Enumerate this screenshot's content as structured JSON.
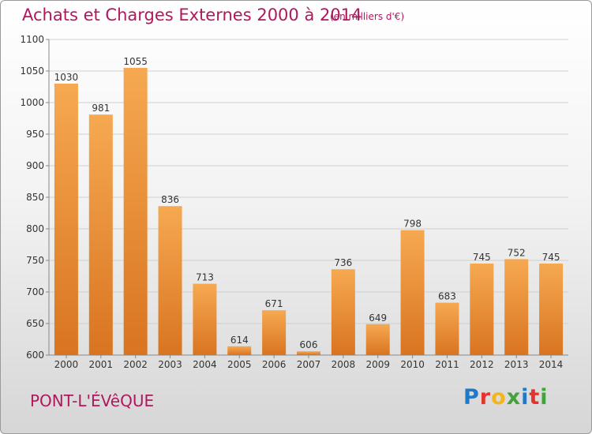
{
  "title": "Achats et Charges Externes 2000 à 2014",
  "unit": "(en milliers d'€)",
  "town": "PONT-L'ÉVêQUE",
  "logo": {
    "letters": [
      "P",
      "r",
      "o",
      "x",
      "i",
      "t",
      "i"
    ],
    "colors": [
      "#1f78c8",
      "#e5322d",
      "#f3b61a",
      "#43a338",
      "#1f78c8",
      "#e5322d",
      "#43a338"
    ]
  },
  "chart_data": {
    "type": "bar",
    "categories": [
      "2000",
      "2001",
      "2002",
      "2003",
      "2004",
      "2005",
      "2006",
      "2007",
      "2008",
      "2009",
      "2010",
      "2011",
      "2012",
      "2013",
      "2014"
    ],
    "values": [
      1030,
      981,
      1055,
      836,
      713,
      614,
      671,
      606,
      736,
      649,
      798,
      683,
      745,
      752,
      745
    ],
    "value_labels": [
      "1030",
      "981",
      "1055",
      "836",
      "713",
      "614",
      "671",
      "606",
      "736",
      "649",
      "798",
      "683",
      "745",
      "752",
      "745"
    ],
    "yticks": [
      "600",
      "650",
      "700",
      "750",
      "800",
      "850",
      "900",
      "950",
      "1000",
      "1050",
      "1100"
    ],
    "ylim": [
      600,
      1100
    ],
    "grid": true,
    "bar_color": "#f4a24a"
  }
}
